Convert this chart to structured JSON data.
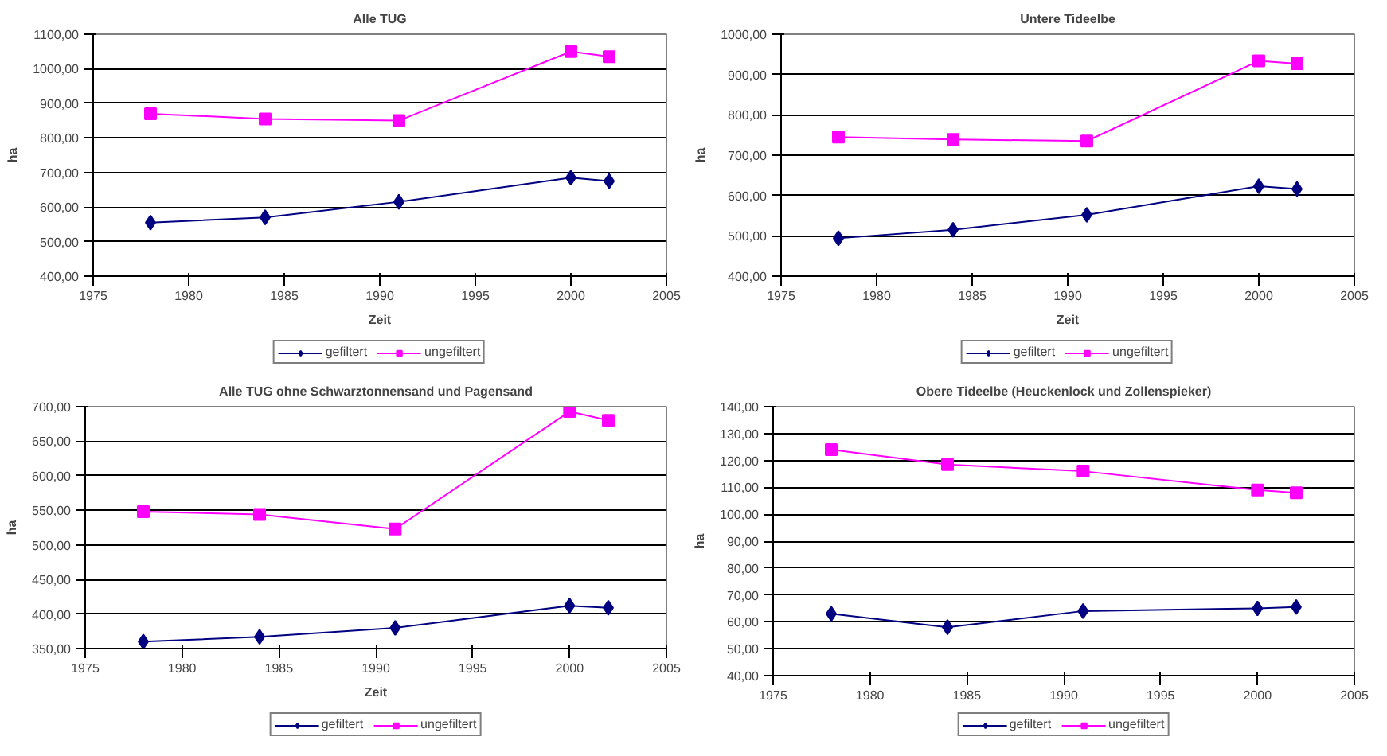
{
  "chart_data": [
    {
      "type": "line",
      "title": "Alle TUG",
      "xlabel": "Zeit",
      "ylabel": "ha",
      "x": [
        1978,
        1984,
        1991,
        2000,
        2002
      ],
      "series": [
        {
          "name": "gefiltert",
          "color": "#000080",
          "marker": "diamond",
          "values": [
            555,
            570,
            615,
            685,
            675
          ]
        },
        {
          "name": "ungefiltert",
          "color": "#ff00ff",
          "marker": "square",
          "values": [
            870,
            855,
            850,
            1050,
            1035
          ]
        }
      ],
      "xlim": [
        1975,
        2005
      ],
      "xticks": [
        1975,
        1980,
        1985,
        1990,
        1995,
        2000,
        2005
      ],
      "ylim": [
        400,
        1100
      ],
      "yticks": [
        {
          "value": 400,
          "label": "400,00"
        },
        {
          "value": 500,
          "label": "500,00"
        },
        {
          "value": 600,
          "label": "600,00"
        },
        {
          "value": 700,
          "label": "700,00"
        },
        {
          "value": 800,
          "label": "800,00"
        },
        {
          "value": 900,
          "label": "900,00"
        },
        {
          "value": 1000,
          "label": "1000,00"
        },
        {
          "value": 1100,
          "label": "1100,00"
        }
      ],
      "grid": "y",
      "legend": "bottom"
    },
    {
      "type": "line",
      "title": "Untere Tideelbe",
      "xlabel": "Zeit",
      "ylabel": "ha",
      "x": [
        1978,
        1984,
        1991,
        2000,
        2002
      ],
      "series": [
        {
          "name": "gefiltert",
          "color": "#000080",
          "marker": "diamond",
          "values": [
            494,
            515,
            552,
            623,
            616
          ]
        },
        {
          "name": "ungefiltert",
          "color": "#ff00ff",
          "marker": "square",
          "values": [
            745,
            739,
            735,
            934,
            927
          ]
        }
      ],
      "xlim": [
        1975,
        2005
      ],
      "xticks": [
        1975,
        1980,
        1985,
        1990,
        1995,
        2000,
        2005
      ],
      "ylim": [
        400,
        1000
      ],
      "yticks": [
        {
          "value": 400,
          "label": "400,00"
        },
        {
          "value": 500,
          "label": "500,00"
        },
        {
          "value": 600,
          "label": "600,00"
        },
        {
          "value": 700,
          "label": "700,00"
        },
        {
          "value": 800,
          "label": "800,00"
        },
        {
          "value": 900,
          "label": "900,00"
        },
        {
          "value": 1000,
          "label": "1000,00"
        }
      ],
      "grid": "y",
      "legend": "bottom"
    },
    {
      "type": "line",
      "title": "Alle TUG ohne Schwarztonnensand und Pagensand",
      "xlabel": "Zeit",
      "ylabel": "ha",
      "x": [
        1978,
        1984,
        1991,
        2000,
        2002
      ],
      "series": [
        {
          "name": "gefiltert",
          "color": "#000080",
          "marker": "diamond",
          "values": [
            360,
            367,
            380,
            412,
            409
          ]
        },
        {
          "name": "ungefiltert",
          "color": "#ff00ff",
          "marker": "square",
          "values": [
            548,
            544,
            523,
            693,
            680
          ]
        }
      ],
      "xlim": [
        1975,
        2005
      ],
      "xticks": [
        1975,
        1980,
        1985,
        1990,
        1995,
        2000,
        2005
      ],
      "ylim": [
        350,
        700
      ],
      "yticks": [
        {
          "value": 350,
          "label": "350,00"
        },
        {
          "value": 400,
          "label": "400,00"
        },
        {
          "value": 450,
          "label": "450,00"
        },
        {
          "value": 500,
          "label": "500,00"
        },
        {
          "value": 550,
          "label": "550,00"
        },
        {
          "value": 600,
          "label": "600,00"
        },
        {
          "value": 650,
          "label": "650,00"
        },
        {
          "value": 700,
          "label": "700,00"
        }
      ],
      "grid": "y",
      "legend": "bottom"
    },
    {
      "type": "line",
      "title": "Obere Tideelbe (Heuckenlock und Zollenspieker)",
      "ylabel": "ha",
      "x": [
        1978,
        1984,
        1991,
        2000,
        2002
      ],
      "series": [
        {
          "name": "gefiltert",
          "color": "#000080",
          "marker": "diamond",
          "values": [
            63,
            58,
            64,
            65,
            65.5
          ]
        },
        {
          "name": "ungefiltert",
          "color": "#ff00ff",
          "marker": "square",
          "values": [
            124,
            118.5,
            116,
            109,
            108
          ]
        }
      ],
      "xlim": [
        1975,
        2005
      ],
      "xticks": [
        1975,
        1980,
        1985,
        1990,
        1995,
        2000,
        2005
      ],
      "ylim": [
        40,
        140
      ],
      "yticks": [
        {
          "value": 40,
          "label": "40,00"
        },
        {
          "value": 50,
          "label": "50,00"
        },
        {
          "value": 60,
          "label": "60,00"
        },
        {
          "value": 70,
          "label": "70,00"
        },
        {
          "value": 80,
          "label": "80,00"
        },
        {
          "value": 90,
          "label": "90,00"
        },
        {
          "value": 100,
          "label": "100,00"
        },
        {
          "value": 110,
          "label": "110,00"
        },
        {
          "value": 120,
          "label": "120,00"
        },
        {
          "value": 130,
          "label": "130,00"
        },
        {
          "value": 140,
          "label": "140,00"
        }
      ],
      "grid": "y",
      "legend": "bottom"
    }
  ]
}
